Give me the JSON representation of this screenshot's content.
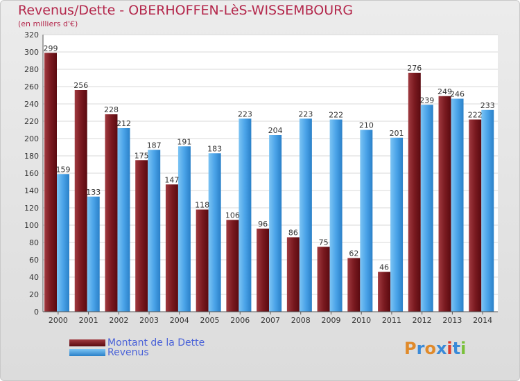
{
  "title": "Revenus/Dette - OBERHOFFEN-LèS-WISSEMBOURG",
  "subtitle": "(en milliers d'€)",
  "legend": [
    {
      "label": "Montant de la Dette",
      "color": "#7a1a20"
    },
    {
      "label": "Revenus",
      "color": "#4aa3e8"
    }
  ],
  "logo": {
    "letters": [
      "P",
      "r",
      "o",
      "x",
      "i",
      "t",
      "i"
    ],
    "colors": [
      "#e08a2a",
      "#3a8ad8",
      "#e08a2a",
      "#3a8ad8",
      "#e03a2a",
      "#3a8ad8",
      "#7ac03a"
    ]
  },
  "chart_data": {
    "type": "bar",
    "categories": [
      "2000",
      "2001",
      "2002",
      "2003",
      "2004",
      "2005",
      "2006",
      "2007",
      "2008",
      "2009",
      "2010",
      "2011",
      "2012",
      "2013",
      "2014"
    ],
    "series": [
      {
        "name": "Montant de la Dette",
        "values": [
          299,
          256,
          228,
          175,
          147,
          118,
          106,
          96,
          86,
          75,
          62,
          46,
          276,
          249,
          222
        ]
      },
      {
        "name": "Revenus",
        "values": [
          159,
          133,
          212,
          187,
          191,
          183,
          223,
          204,
          223,
          222,
          210,
          201,
          239,
          246,
          233
        ]
      }
    ],
    "ylim": [
      0,
      320
    ],
    "yticks": [
      "0",
      "20",
      "40",
      "60",
      "80",
      "100",
      "120",
      "140",
      "160",
      "180",
      "200",
      "220",
      "240",
      "260",
      "280",
      "300",
      "320"
    ],
    "grid": true
  }
}
